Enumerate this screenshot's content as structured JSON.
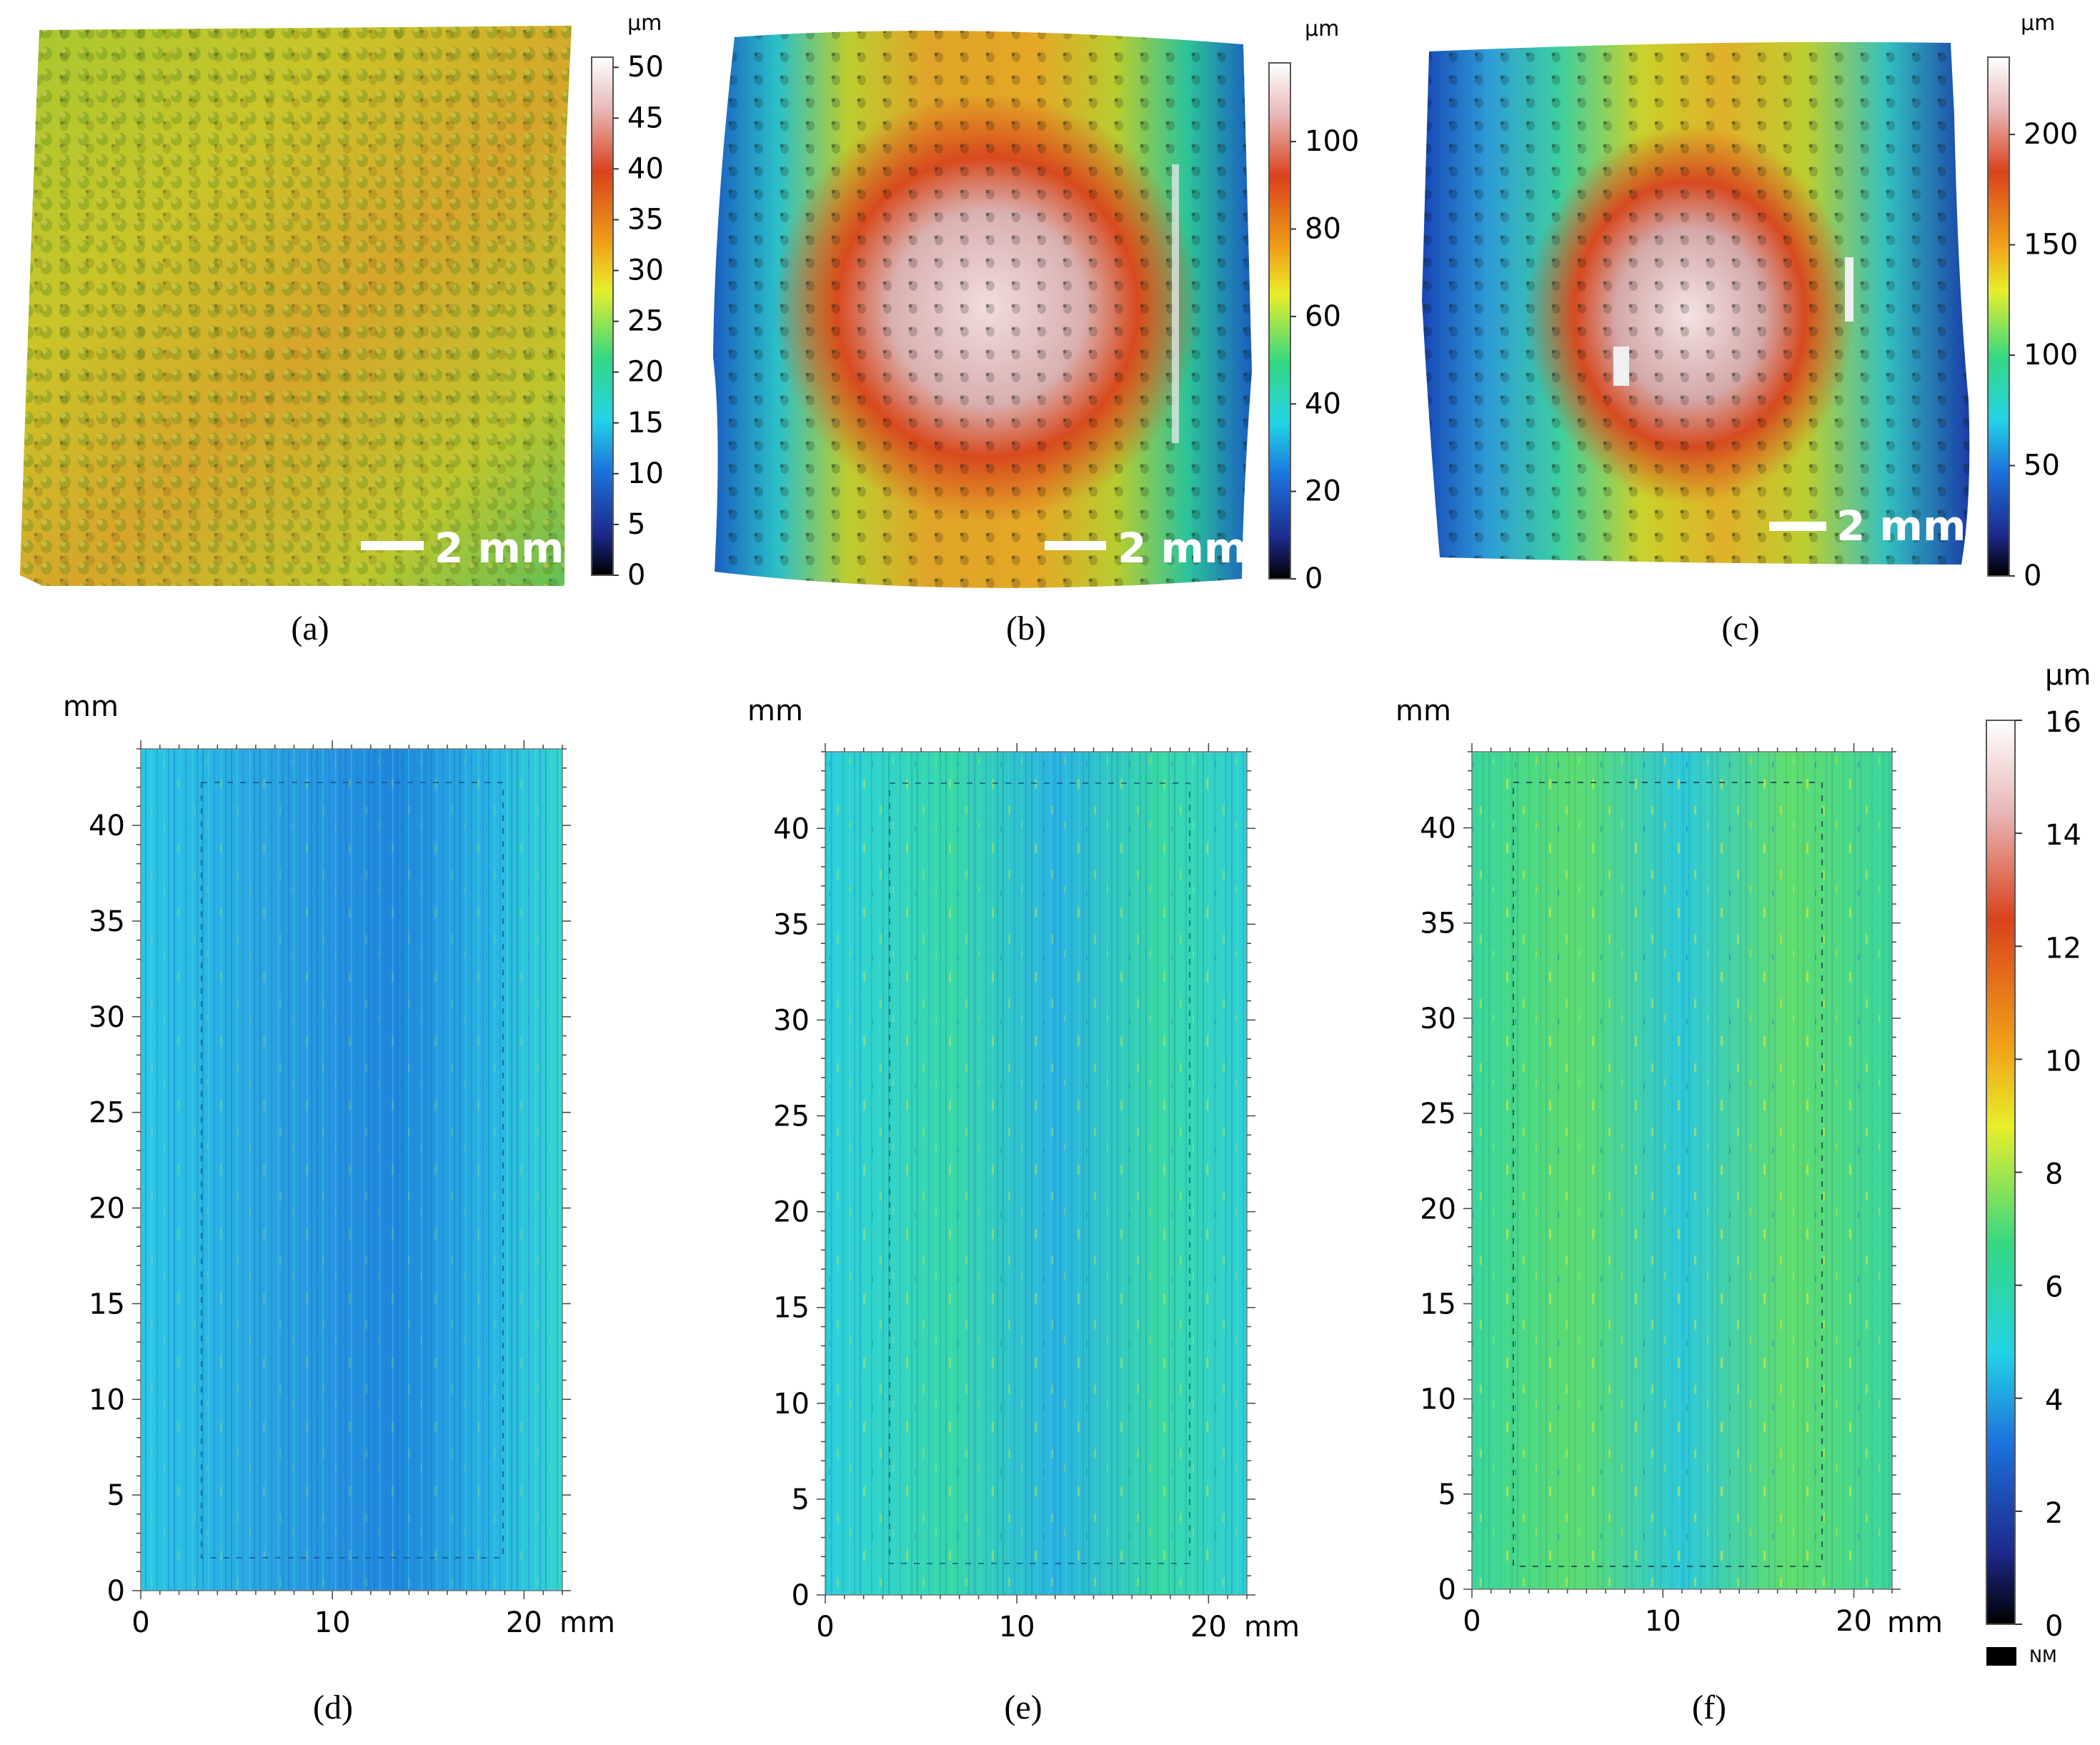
{
  "figure": {
    "panels_3d": [
      {
        "id": "a",
        "caption": "(a)",
        "scale_label": "2 mm",
        "unit": "µm",
        "ticks": [
          "0",
          "5",
          "10",
          "15",
          "20",
          "25",
          "30",
          "35",
          "40",
          "45",
          "50"
        ],
        "max": 51,
        "palette": "yellow-dominant"
      },
      {
        "id": "b",
        "caption": "(b)",
        "scale_label": "2 mm",
        "unit": "µm",
        "ticks": [
          "0",
          "20",
          "40",
          "60",
          "80",
          "100"
        ],
        "max": 118,
        "palette": "center-hot"
      },
      {
        "id": "c",
        "caption": "(c)",
        "scale_label": "2 mm",
        "unit": "µm",
        "ticks": [
          "0",
          "50",
          "100",
          "150",
          "200"
        ],
        "max": 235,
        "palette": "center-hot-narrow"
      }
    ],
    "panels_map": [
      {
        "id": "d",
        "caption": "(d)",
        "mean_level": "low"
      },
      {
        "id": "e",
        "caption": "(e)",
        "mean_level": "mid"
      },
      {
        "id": "f",
        "caption": "(f)",
        "mean_level": "high"
      }
    ],
    "map_axes": {
      "y_unit": "mm",
      "x_unit": "mm",
      "y_ticks": [
        "0",
        "5",
        "10",
        "15",
        "20",
        "25",
        "30",
        "35",
        "40"
      ],
      "x_ticks": [
        "0",
        "10",
        "20"
      ],
      "x_range": [
        0,
        22
      ],
      "y_range": [
        0,
        44
      ]
    },
    "shared_colorbar": {
      "unit": "µm",
      "ticks": [
        "0",
        "2",
        "4",
        "6",
        "8",
        "10",
        "12",
        "14",
        "16"
      ],
      "range": [
        0,
        16
      ],
      "nm_label": "NM"
    },
    "colors": {
      "cyan": "#29d3e6",
      "blue": "#1976d6",
      "green": "#38d672",
      "yellow": "#e6e630",
      "red": "#d9431d",
      "white": "#f3e8ea"
    }
  }
}
